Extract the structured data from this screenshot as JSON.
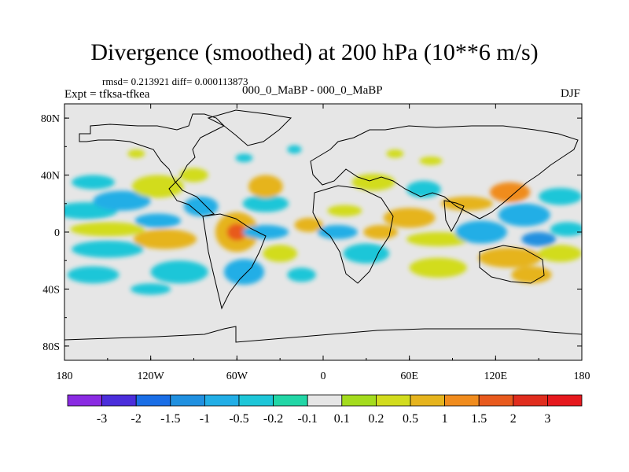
{
  "chart_data": {
    "type": "heatmap",
    "title": "Divergence (smoothed) at 200 hPa (10**6 m/s)",
    "stats_text": "rmsd= 0.213921 diff= 0.000113873",
    "left_label": "Expt = tfksa-tfkea",
    "center_label": "000_0_MaBP - 000_0_MaBP",
    "right_label": "DJF",
    "x_axis": {
      "range": [
        -180,
        180
      ],
      "ticks": [
        -180,
        -120,
        -60,
        0,
        60,
        120,
        180
      ],
      "tick_labels": [
        "180",
        "120W",
        "60W",
        "0",
        "60E",
        "120E",
        "180"
      ]
    },
    "y_axis": {
      "range": [
        -90,
        90
      ],
      "ticks": [
        80,
        40,
        0,
        -40,
        -80
      ],
      "tick_labels": [
        "80N",
        "40N",
        "0",
        "40S",
        "80S"
      ]
    },
    "colorbar": {
      "labels": [
        "-3",
        "-2",
        "-1.5",
        "-1",
        "-0.5",
        "-0.2",
        "-0.1",
        "0.1",
        "0.2",
        "0.5",
        "1",
        "1.5",
        "2",
        "3"
      ],
      "colors": [
        "#8a2be2",
        "#4b2edb",
        "#1a6ee6",
        "#2090e0",
        "#22aee6",
        "#1ec6d8",
        "#22d6a6",
        "#e6e6e6",
        "#a4dc1e",
        "#d2dc1e",
        "#e6b41e",
        "#f08c1e",
        "#e85a1e",
        "#e02d1e",
        "#e6191e"
      ]
    },
    "blobs": [
      {
        "lon": -165,
        "lat": 15,
        "rx": 22,
        "ry": 6,
        "value": -0.3
      },
      {
        "lon": -160,
        "lat": 35,
        "rx": 15,
        "ry": 5,
        "value": -0.3
      },
      {
        "lon": -140,
        "lat": 22,
        "rx": 20,
        "ry": 7,
        "value": -0.8
      },
      {
        "lon": -150,
        "lat": 2,
        "rx": 26,
        "ry": 5,
        "value": 0.3
      },
      {
        "lon": -150,
        "lat": -12,
        "rx": 25,
        "ry": 6,
        "value": -0.4
      },
      {
        "lon": -160,
        "lat": -30,
        "rx": 18,
        "ry": 6,
        "value": -0.3
      },
      {
        "lon": -115,
        "lat": 32,
        "rx": 18,
        "ry": 8,
        "value": 0.3
      },
      {
        "lon": -110,
        "lat": -5,
        "rx": 22,
        "ry": 7,
        "value": 0.5
      },
      {
        "lon": -115,
        "lat": 8,
        "rx": 16,
        "ry": 5,
        "value": -1.0
      },
      {
        "lon": -100,
        "lat": -28,
        "rx": 20,
        "ry": 8,
        "value": -0.4
      },
      {
        "lon": -120,
        "lat": -40,
        "rx": 14,
        "ry": 4,
        "value": -0.3
      },
      {
        "lon": -85,
        "lat": 18,
        "rx": 12,
        "ry": 7,
        "value": -0.6
      },
      {
        "lon": -90,
        "lat": 40,
        "rx": 10,
        "ry": 5,
        "value": 0.3
      },
      {
        "lon": -60,
        "lat": 0,
        "rx": 15,
        "ry": 14,
        "value": 0.8
      },
      {
        "lon": -60,
        "lat": 0,
        "rx": 7,
        "ry": 6,
        "value": 1.6
      },
      {
        "lon": -55,
        "lat": -28,
        "rx": 14,
        "ry": 9,
        "value": -0.6
      },
      {
        "lon": -40,
        "lat": 20,
        "rx": 16,
        "ry": 6,
        "value": -0.4
      },
      {
        "lon": -40,
        "lat": 32,
        "rx": 12,
        "ry": 8,
        "value": 0.8
      },
      {
        "lon": -40,
        "lat": 0,
        "rx": 16,
        "ry": 5,
        "value": -0.8
      },
      {
        "lon": -30,
        "lat": -15,
        "rx": 12,
        "ry": 6,
        "value": 0.4
      },
      {
        "lon": -15,
        "lat": -30,
        "rx": 10,
        "ry": 5,
        "value": -0.3
      },
      {
        "lon": -10,
        "lat": 5,
        "rx": 10,
        "ry": 5,
        "value": 0.5
      },
      {
        "lon": 10,
        "lat": 0,
        "rx": 14,
        "ry": 5,
        "value": -0.6
      },
      {
        "lon": 15,
        "lat": 15,
        "rx": 12,
        "ry": 4,
        "value": 0.4
      },
      {
        "lon": 30,
        "lat": -15,
        "rx": 16,
        "ry": 7,
        "value": -0.5
      },
      {
        "lon": 40,
        "lat": 0,
        "rx": 12,
        "ry": 5,
        "value": 0.7
      },
      {
        "lon": 35,
        "lat": 35,
        "rx": 15,
        "ry": 6,
        "value": 0.4
      },
      {
        "lon": 60,
        "lat": 10,
        "rx": 18,
        "ry": 7,
        "value": 0.6
      },
      {
        "lon": 70,
        "lat": 30,
        "rx": 12,
        "ry": 6,
        "value": -0.3
      },
      {
        "lon": 80,
        "lat": -5,
        "rx": 22,
        "ry": 5,
        "value": 0.4
      },
      {
        "lon": 80,
        "lat": -25,
        "rx": 20,
        "ry": 7,
        "value": 0.3
      },
      {
        "lon": 100,
        "lat": 20,
        "rx": 18,
        "ry": 5,
        "value": 0.5
      },
      {
        "lon": 110,
        "lat": 0,
        "rx": 18,
        "ry": 8,
        "value": -0.7
      },
      {
        "lon": 130,
        "lat": 28,
        "rx": 14,
        "ry": 7,
        "value": 1.0
      },
      {
        "lon": 140,
        "lat": 12,
        "rx": 18,
        "ry": 8,
        "value": -0.8
      },
      {
        "lon": 150,
        "lat": -5,
        "rx": 12,
        "ry": 5,
        "value": -1.2
      },
      {
        "lon": 130,
        "lat": -18,
        "rx": 22,
        "ry": 7,
        "value": 0.5
      },
      {
        "lon": 145,
        "lat": -30,
        "rx": 14,
        "ry": 6,
        "value": 0.8
      },
      {
        "lon": 165,
        "lat": 25,
        "rx": 15,
        "ry": 6,
        "value": -0.5
      },
      {
        "lon": 170,
        "lat": 2,
        "rx": 12,
        "ry": 5,
        "value": -0.4
      },
      {
        "lon": 165,
        "lat": -15,
        "rx": 15,
        "ry": 6,
        "value": 0.3
      },
      {
        "lon": -130,
        "lat": 55,
        "rx": 6,
        "ry": 3,
        "value": 0.3
      },
      {
        "lon": 75,
        "lat": 50,
        "rx": 8,
        "ry": 3,
        "value": 0.3
      },
      {
        "lon": -55,
        "lat": 52,
        "rx": 6,
        "ry": 3,
        "value": -0.3
      },
      {
        "lon": 50,
        "lat": 55,
        "rx": 6,
        "ry": 3,
        "value": 0.3
      },
      {
        "lon": -20,
        "lat": 58,
        "rx": 5,
        "ry": 3,
        "value": -0.3
      }
    ]
  }
}
